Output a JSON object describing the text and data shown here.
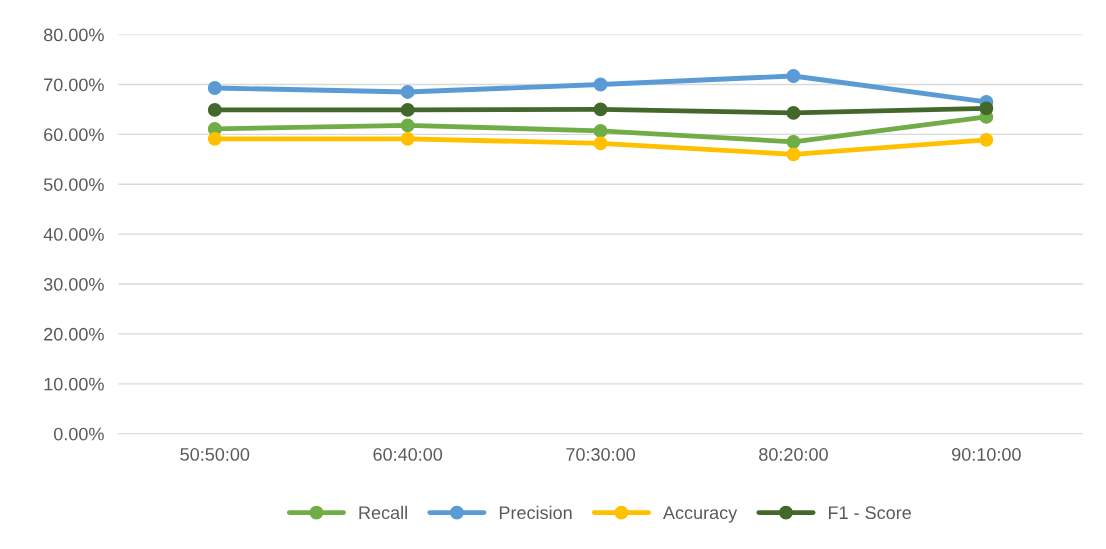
{
  "chart_data": {
    "type": "line",
    "categories": [
      "50:50:00",
      "60:40:00",
      "70:30:00",
      "80:20:00",
      "90:10:00"
    ],
    "series": [
      {
        "name": "Recall",
        "color": "#70ad47",
        "values": [
          61.1,
          61.8,
          60.7,
          58.5,
          63.5
        ]
      },
      {
        "name": "Precision",
        "color": "#5b9bd5",
        "values": [
          69.3,
          68.5,
          70.0,
          71.7,
          66.5
        ]
      },
      {
        "name": "Accuracy",
        "color": "#ffc000",
        "values": [
          59.1,
          59.1,
          58.2,
          56.0,
          58.9
        ]
      },
      {
        "name": "F1 - Score",
        "color": "#43682b",
        "values": [
          64.9,
          64.9,
          65.0,
          64.3,
          65.2
        ]
      }
    ],
    "ylim": [
      0,
      80
    ],
    "yticks": [
      {
        "value": 0,
        "label": "0.00%"
      },
      {
        "value": 10,
        "label": "10.00%"
      },
      {
        "value": 20,
        "label": "20.00%"
      },
      {
        "value": 30,
        "label": "30.00%"
      },
      {
        "value": 40,
        "label": "40.00%"
      },
      {
        "value": 50,
        "label": "50.00%"
      },
      {
        "value": 60,
        "label": "60.00%"
      },
      {
        "value": 70,
        "label": "70.00%"
      },
      {
        "value": 80,
        "label": "80.00%"
      }
    ],
    "grid": "y",
    "legend": "bottom",
    "marker": "circle",
    "line_style": "solid"
  }
}
